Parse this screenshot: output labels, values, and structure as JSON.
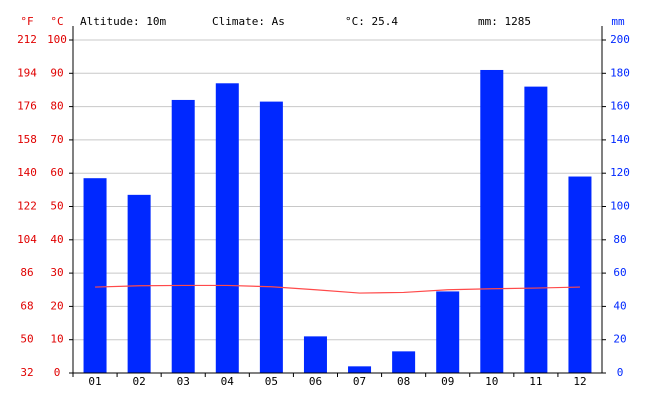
{
  "chart_data": {
    "type": "bar",
    "header": {
      "fahrenheit_unit": "°F",
      "celsius_unit": "°C",
      "altitude": "Altitude: 10m",
      "climate": "Climate: As",
      "mean_temp": "°C: 25.4",
      "total_precip": "mm: 1285",
      "precip_unit": "mm"
    },
    "categories": [
      "01",
      "02",
      "03",
      "04",
      "05",
      "06",
      "07",
      "08",
      "09",
      "10",
      "11",
      "12"
    ],
    "series": [
      {
        "type": "bar",
        "axis": "y2",
        "color": "#0028ff",
        "values": [
          117,
          107,
          164,
          174,
          163,
          22,
          4,
          13,
          49,
          182,
          172,
          118
        ]
      },
      {
        "type": "line",
        "axis": "y",
        "color": "#ff4a4a",
        "values": [
          25.8,
          26.2,
          26.3,
          26.3,
          25.9,
          25.0,
          24.0,
          24.2,
          25.0,
          25.3,
          25.5,
          25.8
        ]
      }
    ],
    "ylim": [
      0,
      100
    ],
    "yticks": [
      0,
      10,
      20,
      30,
      40,
      50,
      60,
      70,
      80,
      90,
      100
    ],
    "y3lim": [
      32,
      212
    ],
    "y3ticks": [
      32,
      50,
      68,
      86,
      104,
      122,
      140,
      158,
      176,
      194,
      212
    ],
    "y2lim": [
      0,
      200
    ],
    "y2ticks": [
      0,
      20,
      40,
      60,
      80,
      100,
      120,
      140,
      160,
      180,
      200
    ],
    "grid": true
  }
}
